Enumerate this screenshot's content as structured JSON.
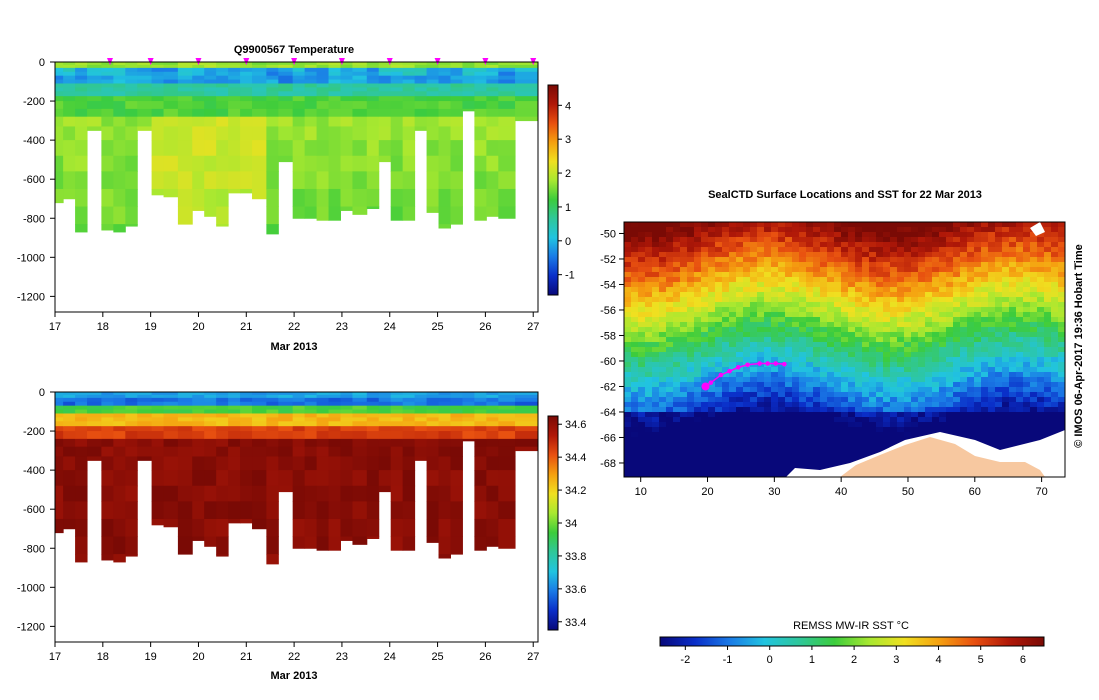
{
  "colors": {
    "cmap": [
      "#08087a",
      "#0a2ec8",
      "#1a7ae6",
      "#21c4e0",
      "#2fc79a",
      "#3ccc3c",
      "#a8e830",
      "#f0e020",
      "#f5a010",
      "#e85010",
      "#b01808",
      "#7a0a05"
    ],
    "marker": "#ff00ff",
    "land": "#f7c8a0",
    "ice": "#ffffff"
  },
  "chart_data": [
    {
      "type": "heatmap",
      "title": "Q9900567  Temperature",
      "xlabel": "Mar 2013",
      "ylabel": "",
      "x_ticks": [
        17,
        18,
        19,
        20,
        21,
        22,
        23,
        24,
        25,
        26,
        27
      ],
      "y_ticks": [
        0,
        -200,
        -400,
        -600,
        -800,
        -1000,
        -1200
      ],
      "xlim": [
        17,
        27.1
      ],
      "ylim": [
        -1280,
        0
      ],
      "colorbar": {
        "ticks": [
          -1,
          0,
          1,
          2,
          3,
          4
        ],
        "range": [
          -1.6,
          4.6
        ]
      },
      "profile_markers_x": [
        18.15,
        19.0,
        20.0,
        21.0,
        22.0,
        23.0,
        24.0,
        25.0,
        26.0,
        27.0
      ],
      "profiles": [
        {
          "x": 17.1,
          "depth": 720
        },
        {
          "x": 17.3,
          "depth": 700
        },
        {
          "x": 17.55,
          "depth": 870
        },
        {
          "x": 17.8,
          "depth": 350
        },
        {
          "x": 18.1,
          "depth": 860
        },
        {
          "x": 18.35,
          "depth": 870
        },
        {
          "x": 18.6,
          "depth": 840
        },
        {
          "x": 18.85,
          "depth": 350
        },
        {
          "x": 19.15,
          "depth": 680
        },
        {
          "x": 19.4,
          "depth": 690
        },
        {
          "x": 19.7,
          "depth": 830
        },
        {
          "x": 20.0,
          "depth": 760
        },
        {
          "x": 20.25,
          "depth": 790
        },
        {
          "x": 20.5,
          "depth": 840
        },
        {
          "x": 20.75,
          "depth": 670
        },
        {
          "x": 21.0,
          "depth": 670
        },
        {
          "x": 21.25,
          "depth": 700
        },
        {
          "x": 21.55,
          "depth": 880
        },
        {
          "x": 21.8,
          "depth": 510
        },
        {
          "x": 22.1,
          "depth": 800
        },
        {
          "x": 22.35,
          "depth": 800
        },
        {
          "x": 22.6,
          "depth": 810
        },
        {
          "x": 22.85,
          "depth": 810
        },
        {
          "x": 23.1,
          "depth": 760
        },
        {
          "x": 23.35,
          "depth": 780
        },
        {
          "x": 23.65,
          "depth": 750
        },
        {
          "x": 23.9,
          "depth": 510
        },
        {
          "x": 24.15,
          "depth": 810
        },
        {
          "x": 24.4,
          "depth": 810
        },
        {
          "x": 24.65,
          "depth": 350
        },
        {
          "x": 24.9,
          "depth": 770
        },
        {
          "x": 25.15,
          "depth": 850
        },
        {
          "x": 25.4,
          "depth": 830
        },
        {
          "x": 25.65,
          "depth": 250
        },
        {
          "x": 25.9,
          "depth": 810
        },
        {
          "x": 26.15,
          "depth": 790
        },
        {
          "x": 26.4,
          "depth": 800
        },
        {
          "x": 26.75,
          "depth": 300
        }
      ]
    },
    {
      "type": "heatmap",
      "title": "",
      "xlabel": "Mar 2013",
      "ylabel": "",
      "x_ticks": [
        17,
        18,
        19,
        20,
        21,
        22,
        23,
        24,
        25,
        26,
        27
      ],
      "y_ticks": [
        0,
        -200,
        -400,
        -600,
        -800,
        -1000,
        -1200
      ],
      "xlim": [
        17,
        27.1
      ],
      "ylim": [
        -1280,
        0
      ],
      "colorbar": {
        "ticks": [
          33.4,
          33.6,
          33.8,
          34,
          34.2,
          34.4,
          34.6
        ],
        "range": [
          33.35,
          34.65
        ]
      }
    },
    {
      "type": "heatmap",
      "title": "SealCTD Surface Locations and SST for 22 Mar 2013",
      "xlabel": "",
      "ylabel": "",
      "x_ticks": [
        10,
        20,
        30,
        40,
        50,
        60,
        70
      ],
      "y_ticks": [
        -50,
        -52,
        -54,
        -56,
        -58,
        -60,
        -62,
        -64,
        -66,
        -68
      ],
      "xlim": [
        7.5,
        73.5
      ],
      "ylim": [
        -69.1,
        -49.1
      ],
      "colorbar": {
        "label": "REMSS MW-IR SST °C",
        "ticks": [
          -2,
          -1,
          0,
          1,
          2,
          3,
          4,
          5,
          6
        ],
        "range": [
          -2.6,
          6.5
        ]
      },
      "track": [
        {
          "lon": 19.7,
          "lat": -62.0
        },
        {
          "lon": 20.5,
          "lat": -61.7
        },
        {
          "lon": 22.0,
          "lat": -61.1
        },
        {
          "lon": 23.3,
          "lat": -60.8
        },
        {
          "lon": 24.6,
          "lat": -60.5
        },
        {
          "lon": 26.0,
          "lat": -60.3
        },
        {
          "lon": 27.8,
          "lat": -60.2
        },
        {
          "lon": 29.0,
          "lat": -60.2
        },
        {
          "lon": 30.2,
          "lat": -60.2
        },
        {
          "lon": 31.5,
          "lat": -60.25
        }
      ],
      "credit": "©  IMOS 06-Apr-2017 19:36 Hobart Time"
    }
  ]
}
